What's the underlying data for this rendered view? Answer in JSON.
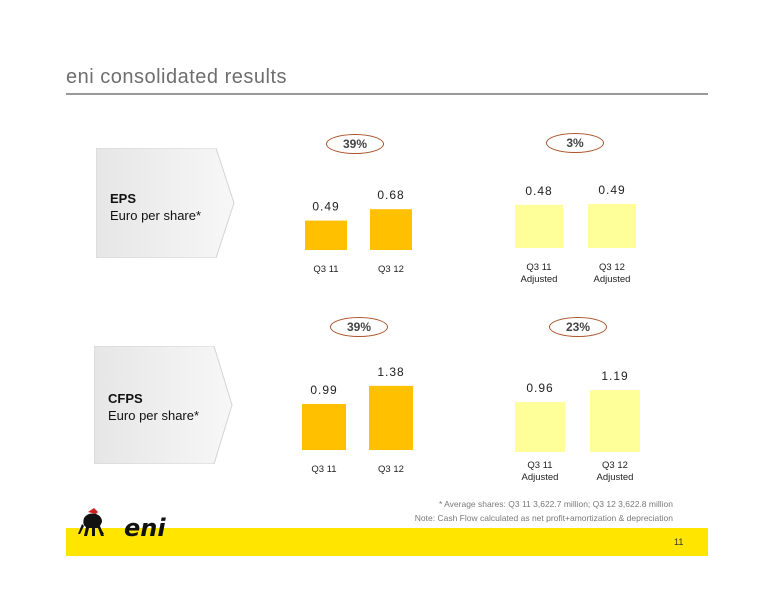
{
  "slide": {
    "title": "eni consolidated results",
    "page_number": "11",
    "footnote_1": "*   Average shares: Q3 11 3,622.7 million; Q3 12 3,622.8 million",
    "footnote_2": "Note: Cash Flow calculated as net profit+amortization & depreciation",
    "logo_text": "eni"
  },
  "sections": {
    "eps": {
      "label_bold": "EPS",
      "label_sub": "Euro per share*"
    },
    "cfps": {
      "label_bold": "CFPS",
      "label_sub": "Euro per share*"
    }
  },
  "colors": {
    "reported_bar": "#ffc000",
    "adjusted_bar": "#ffff99",
    "badge_border": "#a9542a",
    "footer_band": "#ffe500"
  },
  "chart_data": [
    {
      "type": "bar",
      "name": "eps_reported",
      "categories": [
        "Q3 11",
        "Q3 12"
      ],
      "values": [
        0.49,
        0.68
      ],
      "value_labels": [
        "0.49",
        "0.68"
      ],
      "change_label": "39%"
    },
    {
      "type": "bar",
      "name": "eps_adjusted",
      "categories": [
        "Q3 11\nAdjusted",
        "Q3 12\nAdjusted"
      ],
      "values": [
        0.48,
        0.49
      ],
      "value_labels": [
        "0.48",
        "0.49"
      ],
      "change_label": "3%"
    },
    {
      "type": "bar",
      "name": "cfps_reported",
      "categories": [
        "Q3 11",
        "Q3 12"
      ],
      "values": [
        0.99,
        1.38
      ],
      "value_labels": [
        "0.99",
        "1.38"
      ],
      "change_label": "39%"
    },
    {
      "type": "bar",
      "name": "cfps_adjusted",
      "categories": [
        "Q3 11\nAdjusted",
        "Q3 12\nAdjusted"
      ],
      "values": [
        0.96,
        1.19
      ],
      "value_labels": [
        "0.96",
        "1.19"
      ],
      "change_label": "23%"
    }
  ]
}
